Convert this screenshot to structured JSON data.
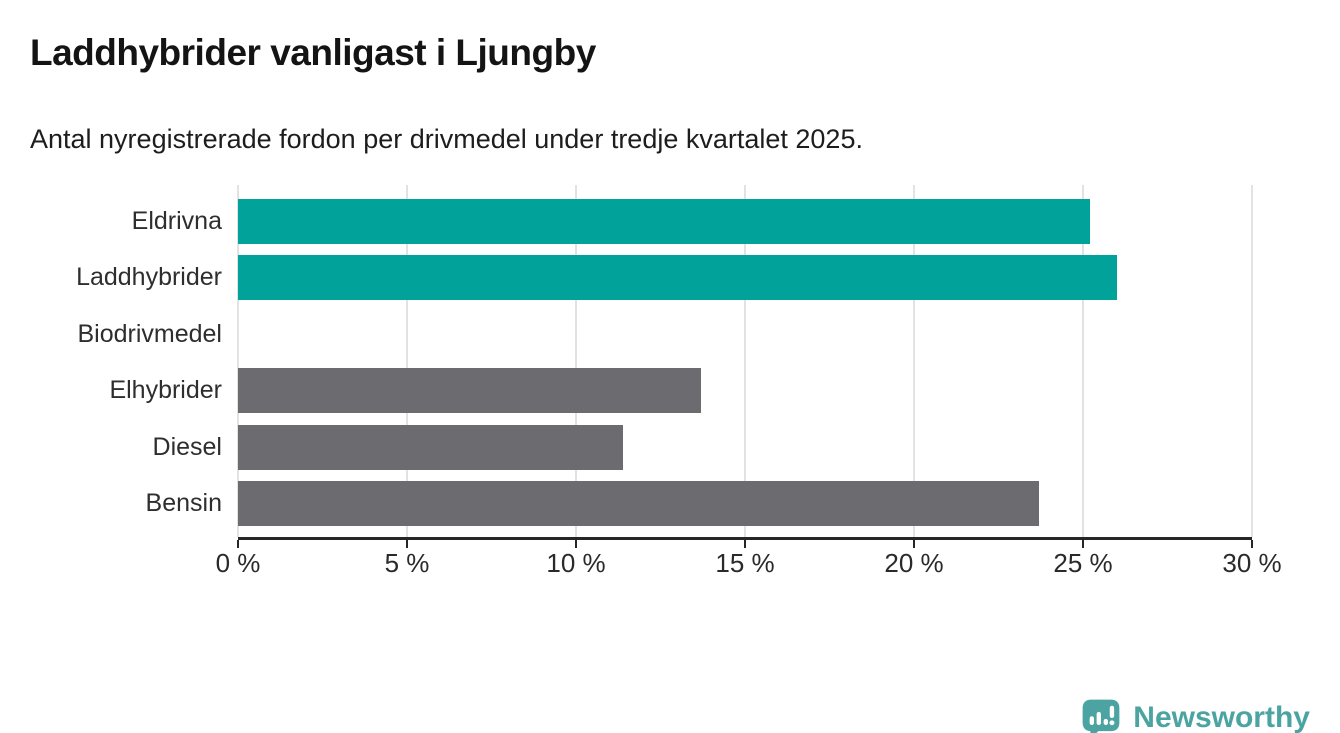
{
  "header": {
    "title": "Laddhybrider vanligast i Ljungby",
    "subtitle": "Antal nyregistrerade fordon per drivmedel under tredje kvartalet 2025."
  },
  "chart_data": {
    "type": "bar",
    "orientation": "horizontal",
    "categories": [
      "Eldrivna",
      "Laddhybrider",
      "Biodrivmedel",
      "Elhybrider",
      "Diesel",
      "Bensin"
    ],
    "values": [
      25.2,
      26.0,
      0,
      13.7,
      11.4,
      23.7
    ],
    "unit": "%",
    "bar_colors": [
      "#00a29a",
      "#00a29a",
      "#6b6b70",
      "#6b6b70",
      "#6b6b70",
      "#6b6b70"
    ],
    "highlight_color": "#00a29a",
    "default_color": "#6b6b70",
    "xlim": [
      0,
      30
    ],
    "ticks": [
      0,
      5,
      10,
      15,
      20,
      25,
      30
    ],
    "tick_labels": [
      "0 %",
      "5 %",
      "10 %",
      "15 %",
      "20 %",
      "25 %",
      "30 %"
    ],
    "grid": true,
    "gridline_color": "#e2e2e2",
    "axis_color": "#262626",
    "legend": "none"
  },
  "footer": {
    "brand": "Newsworthy",
    "brand_color": "#4ba4a2",
    "logo_icon": "bar-chart-speech-bubble-icon"
  }
}
